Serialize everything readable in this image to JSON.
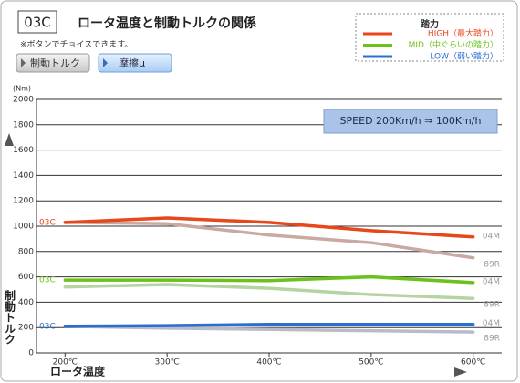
{
  "chart_data": {
    "type": "line",
    "code": "03C",
    "title": "ロータ温度と制動トルクの関係",
    "note": "※ボタンでチョイスできます。",
    "buttons": [
      "制動トルク",
      "摩擦μ"
    ],
    "annotation": "SPEED 200Km/h ⇒ 100Km/h",
    "legend_title": "踏力",
    "y_unit": "(Nm)",
    "y_label": "制動トルク",
    "x_label": "ロータ温度",
    "xlim": [
      172,
      628
    ],
    "xticks": [
      {
        "value": 200,
        "label": "200℃"
      },
      {
        "value": 300,
        "label": "300℃"
      },
      {
        "value": 400,
        "label": "400℃"
      },
      {
        "value": 500,
        "label": "500℃"
      },
      {
        "value": 600,
        "label": "600℃"
      }
    ],
    "ylim": [
      0,
      2000
    ],
    "yticks": [
      0,
      200,
      400,
      600,
      800,
      1000,
      1200,
      1400,
      1600,
      1800,
      2000
    ],
    "grid": true,
    "x": [
      200,
      300,
      400,
      500,
      600
    ],
    "groups": [
      {
        "name": "HIGH（最大踏力）",
        "color": "#e8461b",
        "start_label": "03C",
        "series": [
          {
            "name": "04M",
            "color": "#e8461b",
            "values": [
              1030,
              1065,
              1030,
              965,
              915
            ]
          },
          {
            "name": "89R",
            "color": "#c9aaa3",
            "values": [
              1030,
              1020,
              930,
              870,
              750
            ]
          }
        ]
      },
      {
        "name": "MID（中ぐらいの踏力）",
        "color": "#6cc11d",
        "start_label": "03C",
        "series": [
          {
            "name": "04M",
            "color": "#6cc11d",
            "values": [
              575,
              575,
              570,
              600,
              555
            ]
          },
          {
            "name": "89R",
            "color": "#b5d4a0",
            "values": [
              520,
              540,
              510,
              460,
              430
            ]
          }
        ]
      },
      {
        "name": "LOW（弱い踏力）",
        "color": "#2a6fd0",
        "start_label": "03C",
        "series": [
          {
            "name": "04M",
            "color": "#2a6fd0",
            "values": [
              210,
              215,
              225,
              225,
              225
            ]
          },
          {
            "name": "89R",
            "color": "#b8bcc8",
            "values": [
              210,
              195,
              185,
              175,
              165
            ]
          }
        ]
      }
    ]
  }
}
